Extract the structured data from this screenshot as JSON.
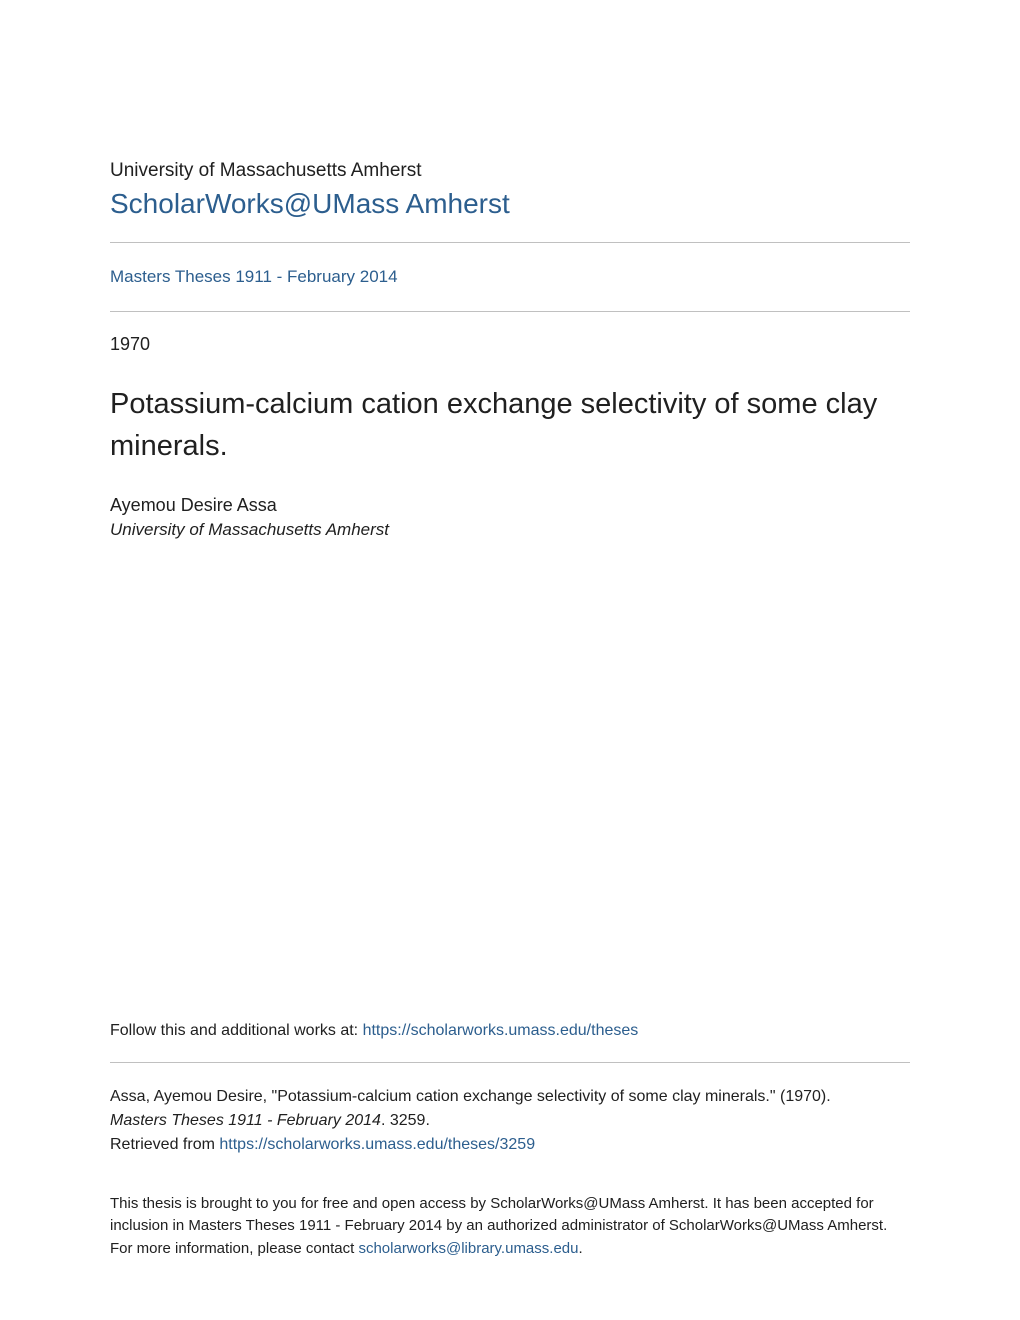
{
  "header": {
    "university": "University of Massachusetts Amherst",
    "site_title": "ScholarWorks@UMass Amherst",
    "site_link_color": "#2c5e8e"
  },
  "collection": {
    "label": "Masters Theses 1911 - February 2014"
  },
  "paper": {
    "year": "1970",
    "title": "Potassium-calcium cation exchange selectivity of some clay minerals.",
    "author": "Ayemou Desire Assa",
    "affiliation": "University of Massachusetts Amherst"
  },
  "follow": {
    "prefix": "Follow this and additional works at: ",
    "url_text": "https://scholarworks.umass.edu/theses"
  },
  "citation": {
    "line1": "Assa, Ayemou Desire, \"Potassium-calcium cation exchange selectivity of some clay minerals.\" (1970).",
    "series_italic": "Masters Theses 1911 - February 2014",
    "series_suffix": ". 3259.",
    "retrieved_prefix": "Retrieved from ",
    "retrieved_url": "https://scholarworks.umass.edu/theses/3259"
  },
  "access_note": {
    "text_prefix": "This thesis is brought to you for free and open access by ScholarWorks@UMass Amherst. It has been accepted for inclusion in Masters Theses 1911 - February 2014 by an authorized administrator of ScholarWorks@UMass Amherst. For more information, please contact ",
    "email": "scholarworks@library.umass.edu",
    "text_suffix": "."
  },
  "colors": {
    "text": "#202020",
    "link": "#2c5e8e",
    "rule": "#c0c0c0",
    "background": "#ffffff"
  },
  "typography": {
    "university_fontsize": 19,
    "site_title_fontsize": 28,
    "collection_fontsize": 17,
    "year_fontsize": 18,
    "title_fontsize": 29,
    "author_fontsize": 18,
    "affiliation_fontsize": 17,
    "body_fontsize": 16,
    "note_fontsize": 15
  }
}
